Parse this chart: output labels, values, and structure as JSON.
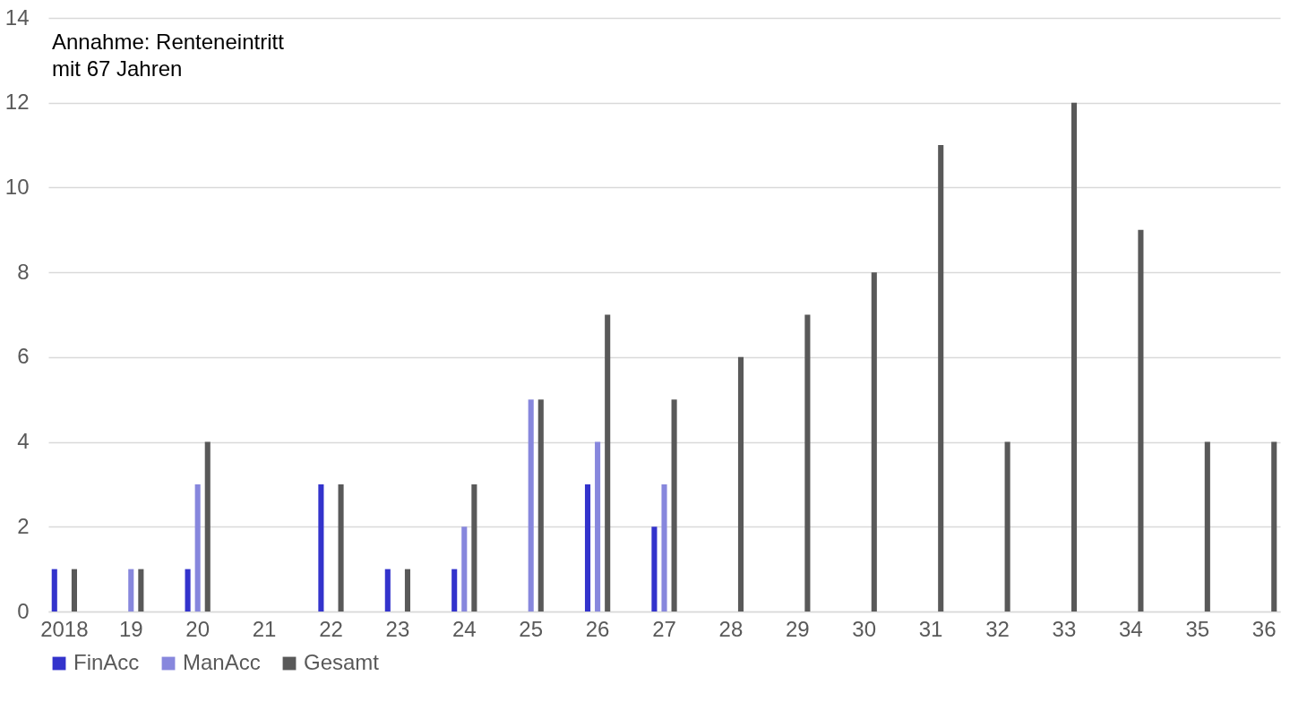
{
  "chart_data": {
    "type": "bar",
    "categories": [
      "2018",
      "19",
      "20",
      "21",
      "22",
      "23",
      "24",
      "25",
      "26",
      "27",
      "28",
      "29",
      "30",
      "31",
      "32",
      "33",
      "34",
      "35",
      "36"
    ],
    "series": [
      {
        "name": "FinAcc",
        "color": "#3333cc",
        "values": [
          1,
          0,
          1,
          0,
          3,
          1,
          1,
          0,
          3,
          2,
          null,
          null,
          null,
          null,
          null,
          null,
          null,
          null,
          null
        ]
      },
      {
        "name": "ManAcc",
        "color": "#8787dd",
        "values": [
          0,
          1,
          3,
          0,
          0,
          0,
          2,
          5,
          4,
          3,
          null,
          null,
          null,
          null,
          null,
          null,
          null,
          null,
          null
        ]
      },
      {
        "name": "Gesamt",
        "color": "#595959",
        "values": [
          1,
          1,
          4,
          0,
          3,
          1,
          3,
          5,
          7,
          5,
          6,
          7,
          8,
          11,
          4,
          12,
          9,
          4,
          4
        ]
      }
    ],
    "ylim": [
      0,
      14
    ],
    "yticks": [
      0,
      2,
      4,
      6,
      8,
      10,
      12,
      14
    ],
    "grid": "y",
    "legend": "bottom",
    "annotations": [
      "Annahme: Renteneintritt\nmit 67 Jahren"
    ]
  }
}
